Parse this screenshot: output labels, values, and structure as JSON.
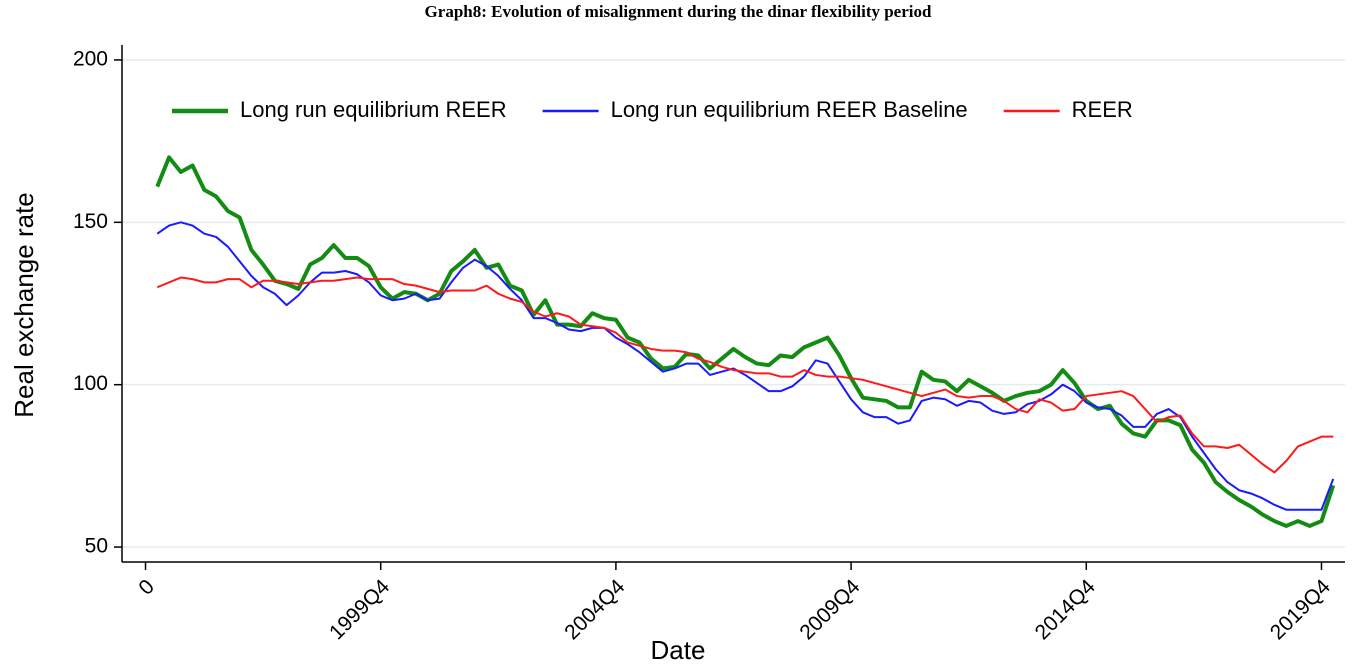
{
  "chart_data": {
    "type": "line",
    "title": "Graph8: Evolution of misalignment during the dinar flexibility period",
    "x_label": "Date",
    "y_label": "Real exchange rate",
    "x": [
      1,
      2,
      3,
      4,
      5,
      6,
      7,
      8,
      9,
      10,
      11,
      12,
      13,
      14,
      15,
      16,
      17,
      18,
      19,
      20,
      21,
      22,
      23,
      24,
      25,
      26,
      27,
      28,
      29,
      30,
      31,
      32,
      33,
      34,
      35,
      36,
      37,
      38,
      39,
      40,
      41,
      42,
      43,
      44,
      45,
      46,
      47,
      48,
      49,
      50,
      51,
      52,
      53,
      54,
      55,
      56,
      57,
      58,
      59,
      60,
      61,
      62,
      63,
      64,
      65,
      66,
      67,
      68,
      69,
      70,
      71,
      72,
      73,
      74,
      75,
      76,
      77,
      78,
      79,
      80,
      81,
      82,
      83,
      84,
      85,
      86,
      87,
      88,
      89,
      90,
      91,
      92,
      93,
      94,
      95,
      96,
      97,
      98,
      99,
      100,
      101
    ],
    "series": [
      {
        "name": "Long run equilibrium REER",
        "color": "#148c14",
        "width": 4,
        "values": [
          161,
          170,
          165.5,
          167.5,
          160,
          158,
          153.5,
          151.5,
          141.5,
          137,
          132,
          131,
          129.5,
          137,
          139,
          143,
          139,
          139,
          136.5,
          130,
          126.5,
          128.5,
          128,
          126,
          128,
          135,
          138,
          141.5,
          136,
          137,
          130.5,
          129,
          121.5,
          126,
          118.5,
          118.5,
          118,
          122,
          120.5,
          120,
          114.5,
          113,
          108,
          105,
          105.5,
          109.5,
          109,
          105,
          108,
          111,
          108.5,
          106.5,
          106,
          109,
          108.5,
          111.5,
          113,
          114.5,
          109,
          102,
          96,
          95.5,
          95,
          93,
          93,
          104,
          101.5,
          101,
          98,
          101.5,
          99.5,
          97.5,
          95,
          96.5,
          97.5,
          98,
          100,
          104.5,
          100.5,
          95,
          92.5,
          93.5,
          88,
          85,
          84,
          89,
          89,
          87.5,
          80,
          76,
          70,
          67,
          64.5,
          62.5,
          60,
          58,
          56.5,
          58,
          56.5,
          58,
          69
        ]
      },
      {
        "name": "Long run equilibrium REER Baseline",
        "color": "#1a1aff",
        "width": 2,
        "values": [
          146.5,
          149,
          150,
          149,
          146.5,
          145.5,
          142.5,
          138,
          133.5,
          130,
          128,
          124.5,
          127.5,
          131.5,
          134.5,
          134.5,
          135,
          134,
          131.5,
          127.5,
          126,
          126.5,
          128,
          126,
          126.5,
          131.5,
          136,
          138.5,
          136.5,
          133.5,
          129.5,
          126,
          120.5,
          120.5,
          119,
          117,
          116.5,
          117.5,
          117.5,
          114.5,
          112.5,
          110,
          107,
          104,
          105,
          106.5,
          106.5,
          103,
          104,
          105,
          103,
          100.5,
          98,
          98,
          99.5,
          102.5,
          107.5,
          106.5,
          101,
          95.5,
          91.5,
          90,
          90,
          88,
          89,
          95,
          96,
          95.5,
          93.5,
          95,
          94.5,
          92,
          91,
          91.5,
          94,
          95,
          97,
          100,
          98,
          94.5,
          93,
          92.5,
          90.5,
          87,
          87,
          91,
          92.5,
          90,
          84,
          79,
          74,
          70,
          67.5,
          66.5,
          65,
          63,
          61.5,
          61.5,
          61.5,
          61.5,
          71
        ]
      },
      {
        "name": "REER",
        "color": "#ff1a1a",
        "width": 2,
        "values": [
          130,
          131.5,
          133,
          132.5,
          131.5,
          131.5,
          132.5,
          132.5,
          130,
          132,
          132,
          131.5,
          131,
          131.5,
          132,
          132,
          132.5,
          133,
          132.5,
          132.5,
          132.5,
          131,
          130.5,
          129.5,
          128.5,
          129,
          129,
          129,
          130.5,
          128,
          126.5,
          125.5,
          122.5,
          121,
          122,
          121,
          118.5,
          118,
          117.5,
          116,
          113,
          112,
          111,
          110.5,
          110.5,
          110,
          108,
          107,
          105.5,
          104.5,
          104,
          103.5,
          103.5,
          102.5,
          102.5,
          104.5,
          103,
          102.5,
          102.5,
          102,
          101.5,
          100.5,
          99.5,
          98.5,
          97.5,
          96.5,
          97.5,
          98.5,
          96.5,
          96,
          96.5,
          96.5,
          95,
          92.5,
          91.5,
          95.5,
          94.5,
          92,
          92.5,
          96.5,
          97,
          97.5,
          98,
          96.5,
          92.5,
          88.5,
          90,
          90.5,
          85,
          81,
          81,
          80.5,
          81.5,
          78.5,
          75.5,
          73,
          76.5,
          81,
          82.5,
          84,
          84
        ]
      }
    ],
    "xlim": [
      -2,
      102
    ],
    "ylim": [
      45.4,
      204.6
    ],
    "xticks": [
      0,
      {
        "value": 20,
        "label": "1999Q4"
      },
      {
        "value": 40,
        "label": "2004Q4"
      },
      {
        "value": 60,
        "label": "2009Q4"
      },
      {
        "value": 80,
        "label": "2014Q4"
      },
      {
        "value": 100,
        "label": "2019Q4"
      }
    ],
    "yticks": [
      50,
      100,
      150,
      200
    ],
    "grid": true,
    "legend": "top"
  }
}
